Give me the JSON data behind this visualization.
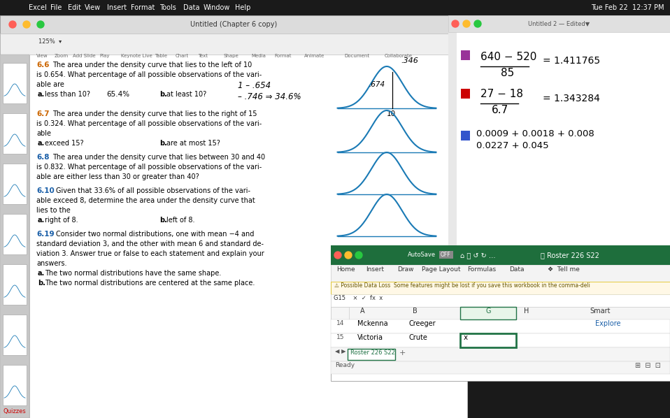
{
  "bg_color": "#1a1a1a",
  "menubar_color": "#1a1a1a",
  "keynote_title_bar_color": "#dcdcdc",
  "keynote_toolbar_color": "#ececec",
  "keynote_sidebar_color": "#c8c8c8",
  "slide_bg": "#ffffff",
  "notes_bg": "#ffffff",
  "notes_title_bg": "#ececec",
  "excel_title_bg": "#1e6e3c",
  "excel_tab_bg": "#f3f3f3",
  "excel_warning_bg": "#fff8e6",
  "excel_cell_selected_bg": "#ffffff",
  "excel_cell_selected_border": "#217346",
  "problem_color_orange": "#cc6600",
  "problem_color_blue": "#1a5fa8",
  "curve_color": "#1a7ab5",
  "quizzes_color": "#cc0000",
  "purple_color": "#993399",
  "red_color": "#cc0000",
  "blue_color": "#3355cc",
  "white": "#ffffff",
  "black": "#000000",
  "menu_items": [
    "Excel",
    "File",
    "Edit",
    "View",
    "Insert",
    "Format",
    "Tools",
    "Data",
    "Window",
    "Help"
  ],
  "time_text": "Tue Feb 22  12:37 PM",
  "doc_title": "Untitled (Chapter 6 copy)",
  "notes_title": "Untitled 2 — Edited▼",
  "zoom_label": "125%",
  "toolbar_items": [
    "View",
    "Zoom",
    "Add Slide",
    "Play",
    "Keynote Live",
    "Table",
    "Chart",
    "Text",
    "Shape",
    "Media",
    "Format",
    "Animate",
    "Document",
    "Collaborate"
  ],
  "excel_roster_title": "Roster 226 S22",
  "excel_tabs": [
    "Home",
    "Insert",
    "Draw",
    "Page Layout",
    "Formulas",
    "Data"
  ],
  "excel_row14": [
    "14",
    "Mckenna",
    "Creeger"
  ],
  "excel_row15": [
    "15",
    "Victoria",
    "Crute"
  ],
  "excel_cell_value": "x",
  "excel_cell_ref": "G15",
  "warning_text": "Possible Data Loss  Some features might be lost if you save this workbook in the comma-deli",
  "ready_text": "Ready",
  "explore_text": "Explore",
  "quizzes_text": "Quizzes",
  "calc1_num": "640 − 520",
  "calc1_den": "85",
  "calc1_result": "= 1.411765",
  "calc2_num": "27 − 18",
  "calc2_den": "6.7",
  "calc2_result": "= 1.343284",
  "calc3_line1": "0.0009 + 0.0018 + 0.008",
  "calc3_line2": "0.0227 + 0.045",
  "p66_num": "6.6",
  "p66_line1": "The area under the density curve that lies to the left of 10",
  "p66_line2": "is 0.654. What percentage of all possible observations of the vari-",
  "p66_line3": "able are",
  "p66_a": "a.",
  "p66_a_text": "less than 10?",
  "p66_ans_a": "65.4%",
  "p66_b": "b.",
  "p66_b_text": "at least 10?",
  "p66_hw1": "1 – .654",
  "p66_hw2": "– .746 ⇒ 34.6%",
  "p66_ann1": ".346",
  "p66_ann2": ".674",
  "p66_ann3": "10",
  "p67_num": "6.7",
  "p67_line1": "The area under the density curve that lies to the right of 15",
  "p67_line2": "is 0.324. What percentage of all possible observations of the vari-",
  "p67_line3": "able",
  "p67_a": "a.",
  "p67_a_text": "exceed 15?",
  "p67_b": "b.",
  "p67_b_text": "are at most 15?",
  "p68_num": "6.8",
  "p68_line1": "The area under the density curve that lies between 30 and 40",
  "p68_line2": "is 0.832. What percentage of all possible observations of the vari-",
  "p68_line3": "able are either less than 30 or greater than 40?",
  "p610_num": "6.10",
  "p610_line1": "Given that 33.6% of all possible observations of the vari-",
  "p610_line2": "able exceed 8, determine the area under the density curve that",
  "p610_line3": "lies to the",
  "p610_a": "a.",
  "p610_a_text": "right of 8.",
  "p610_b": "b.",
  "p610_b_text": "left of 8.",
  "p619_num": "6.19",
  "p619_line1": "Consider two normal distributions, one with mean −4 and",
  "p619_line2": "standard deviation 3, and the other with mean 6 and standard de-",
  "p619_line3": "viation 3. Answer true or false to each statement and explain your",
  "p619_line4": "answers.",
  "p619_a": "a.",
  "p619_a_text": "The two normal distributions have the same shape.",
  "p619_b": "b.",
  "p619_b_text": "The two normal distributions are centered at the same place."
}
